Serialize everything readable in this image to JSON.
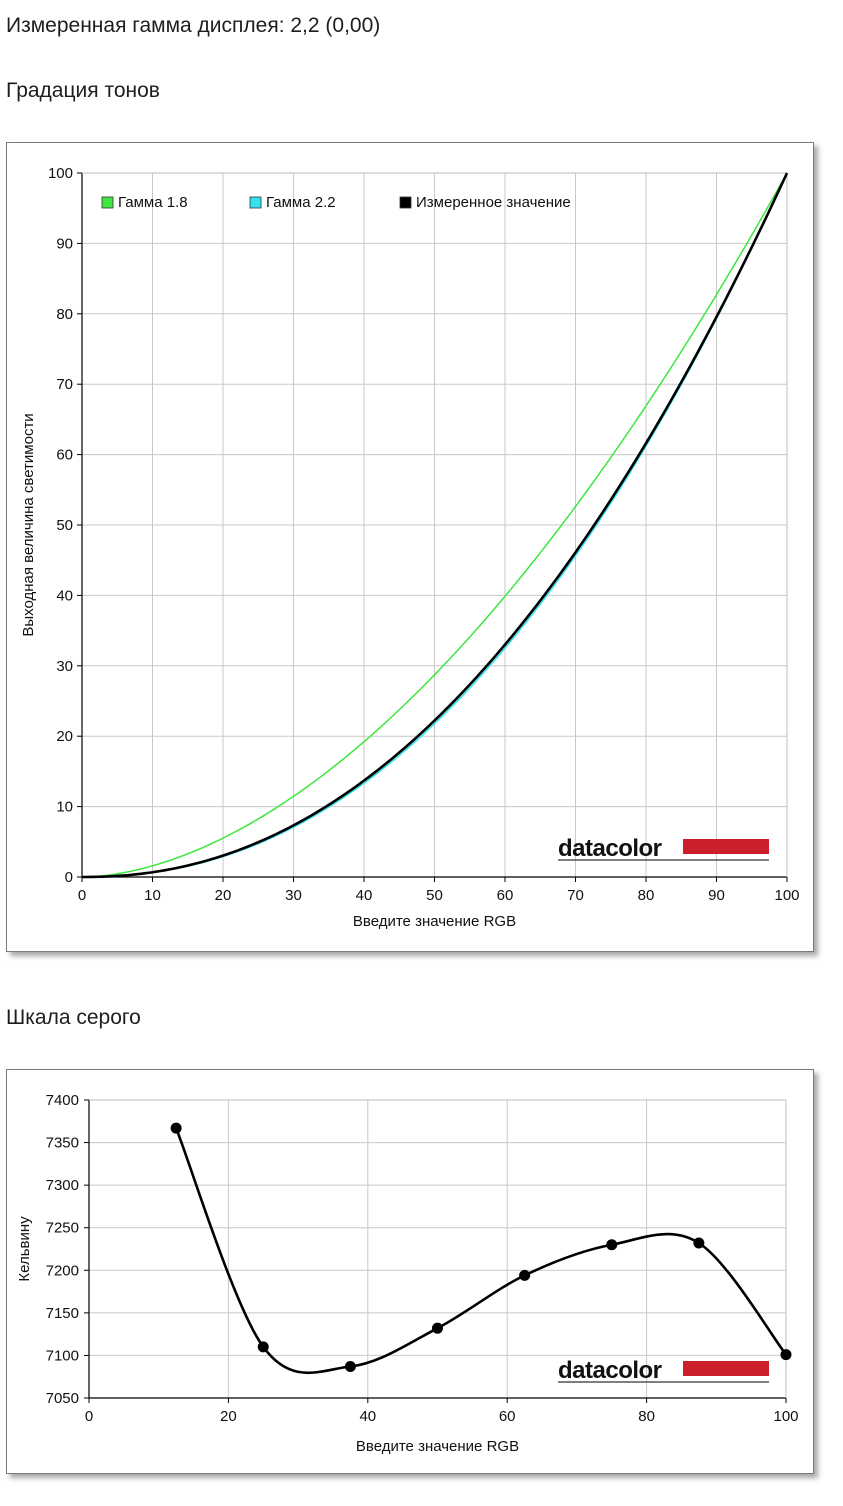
{
  "page": {
    "measured_gamma_text": "Измеренная гамма дисплея: 2,2 (0,00)",
    "tone_heading": "Градация тонов",
    "gray_heading": "Шкала серого"
  },
  "chart_data": [
    {
      "type": "line",
      "xlabel": "Введите значение RGB",
      "ylabel": "Выходная величина светимости",
      "xlim": [
        0,
        100
      ],
      "ylim": [
        0,
        100
      ],
      "xticks": [
        "0",
        "10",
        "20",
        "30",
        "40",
        "50",
        "60",
        "70",
        "80",
        "90",
        "100"
      ],
      "yticks": [
        "0",
        "10",
        "20",
        "30",
        "40",
        "50",
        "60",
        "70",
        "80",
        "90",
        "100"
      ],
      "grid": true,
      "legend_position": "top-left",
      "logo": "datacolor",
      "series": [
        {
          "name": "Гамма 1.8",
          "color": "#3ee63e",
          "gamma": 1.8,
          "width": 1.5
        },
        {
          "name": "Гамма 2.2",
          "color": "#33e4ee",
          "gamma": 2.2,
          "width": 1.5
        },
        {
          "name": "Измеренное значение",
          "color": "#000000",
          "gamma": 2.17,
          "width": 2.6
        }
      ]
    },
    {
      "type": "line",
      "xlabel": "Введите значение RGB",
      "ylabel": "Кельвину",
      "xlim": [
        0,
        100
      ],
      "ylim": [
        7050,
        7400
      ],
      "xticks": [
        "0",
        "20",
        "40",
        "60",
        "80",
        "100"
      ],
      "yticks": [
        "7050",
        "7100",
        "7150",
        "7200",
        "7250",
        "7300",
        "7350",
        "7400"
      ],
      "grid": true,
      "logo": "datacolor",
      "color": "#000000",
      "x": [
        12.5,
        25,
        37.5,
        50,
        62.5,
        75,
        87.5,
        100
      ],
      "y": [
        7367,
        7110,
        7087,
        7132,
        7194,
        7230,
        7232,
        7101
      ]
    }
  ]
}
